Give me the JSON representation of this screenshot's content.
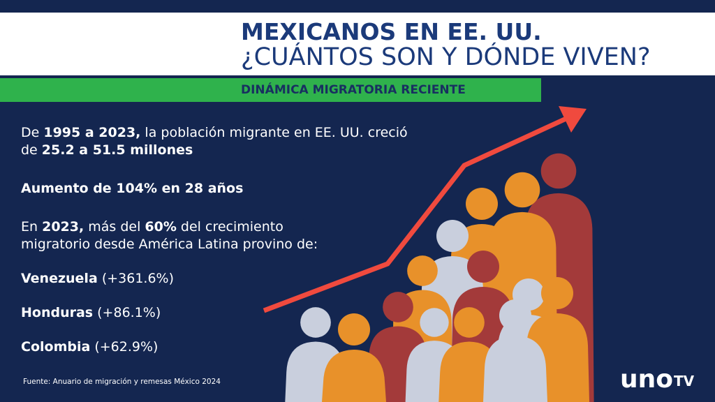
{
  "header": {
    "title_line1": "MEXICANOS EN EE. UU.",
    "title_line2": "¿CUÁNTOS SON Y DÓNDE VIVEN?",
    "subtitle": "DINÁMICA MIGRATORIA RECIENTE"
  },
  "body": {
    "paragraph1": {
      "line1": [
        "De ",
        "1995 a 2023,",
        " la población migrante en EE. UU. creció"
      ],
      "line2": [
        "de ",
        "25.2 a 51.5 millones"
      ]
    },
    "paragraph2": "Aumento de 104% en 28 años",
    "paragraph3": {
      "line1": [
        "En ",
        "2023,",
        " más del ",
        "60%",
        " del crecimiento"
      ],
      "line2": "migratorio desde América Latina provino de:"
    },
    "countries": [
      [
        "Venezuela",
        " (+361.6%)"
      ],
      [
        "Honduras",
        " (+86.1%)"
      ],
      [
        "Colombia",
        " (+62.9%)"
      ]
    ]
  },
  "footer": {
    "source": "Fuente: Anuario de migración y remesas México 2024",
    "logo_main": "uno",
    "logo_tv": "TV"
  }
}
